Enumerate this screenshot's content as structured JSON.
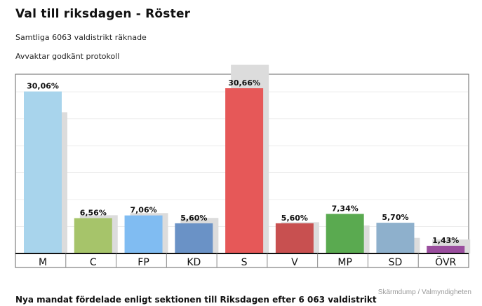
{
  "header": {
    "title": "Val till riksdagen - Röster",
    "subtitle": "Samtliga 6063 valdistrikt räknade",
    "status": "Avvaktar godkänt protokoll"
  },
  "credit": "Skärmdump / Valmyndigheten",
  "bottom_text": "Nya mandat fördelade enligt sektionen till Riksdagen efter 6 063 valdistrikt",
  "colors": {
    "M": "#a8d4ec",
    "C": "#a6c46a",
    "FP": "#80bcf2",
    "KD": "#6a92c6",
    "S": "#e65858",
    "V": "#c85050",
    "MP": "#5aaa50",
    "SD": "#8eb0cc",
    "ÖVR": "#9a4e9e",
    "previous": "#dcdcdc",
    "axis": "#111111",
    "grid": "#ececec"
  },
  "chart_data": {
    "type": "bar",
    "categories": [
      "M",
      "C",
      "FP",
      "KD",
      "S",
      "V",
      "MP",
      "SD",
      "ÖVR"
    ],
    "series": [
      {
        "values": [
          30.06,
          6.56,
          7.06,
          5.6,
          30.66,
          5.6,
          7.34,
          5.7,
          1.43
        ],
        "labels": [
          "30,06%",
          "6,56%",
          "7,06%",
          "5,60%",
          "30,66%",
          "5,60%",
          "7,34%",
          "5,70%",
          "1,43%"
        ]
      },
      {
        "values": [
          26.2,
          7.1,
          7.5,
          6.6,
          35.0,
          5.8,
          5.2,
          2.9,
          2.6
        ]
      }
    ],
    "ylim": [
      0,
      35
    ],
    "grid": true,
    "legend": "none"
  }
}
